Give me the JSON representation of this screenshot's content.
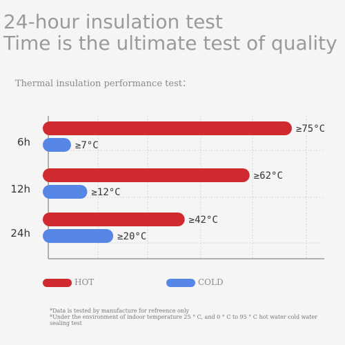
{
  "header": {
    "line1": "24-hour insulation test",
    "line2": "Time is the ultimate test of quality"
  },
  "subtitle": "Thermal insulation performance test：",
  "chart_data": {
    "type": "bar",
    "orientation": "horizontal",
    "categories": [
      "6h",
      "12h",
      "24h"
    ],
    "series": [
      {
        "name": "HOT",
        "color": "#cf2a2f",
        "values": [
          75,
          62,
          42
        ],
        "labels": [
          "≥75°C",
          "≥62°C",
          "≥42°C"
        ]
      },
      {
        "name": "COLD",
        "color": "#5787e6",
        "values": [
          7,
          12,
          20
        ],
        "labels": [
          "≥7°C",
          "≥12°C",
          "≥20°C"
        ]
      }
    ],
    "xlim": [
      0,
      85
    ],
    "grid": true,
    "legend": "bottom"
  },
  "footnote": {
    "line1": "*Data is tested by manufacture for refreence only",
    "line2": "*Under the environment of indoor temperature 25 ° C, and 0 ° C to 95 ° C hot water cold water sealing test"
  }
}
